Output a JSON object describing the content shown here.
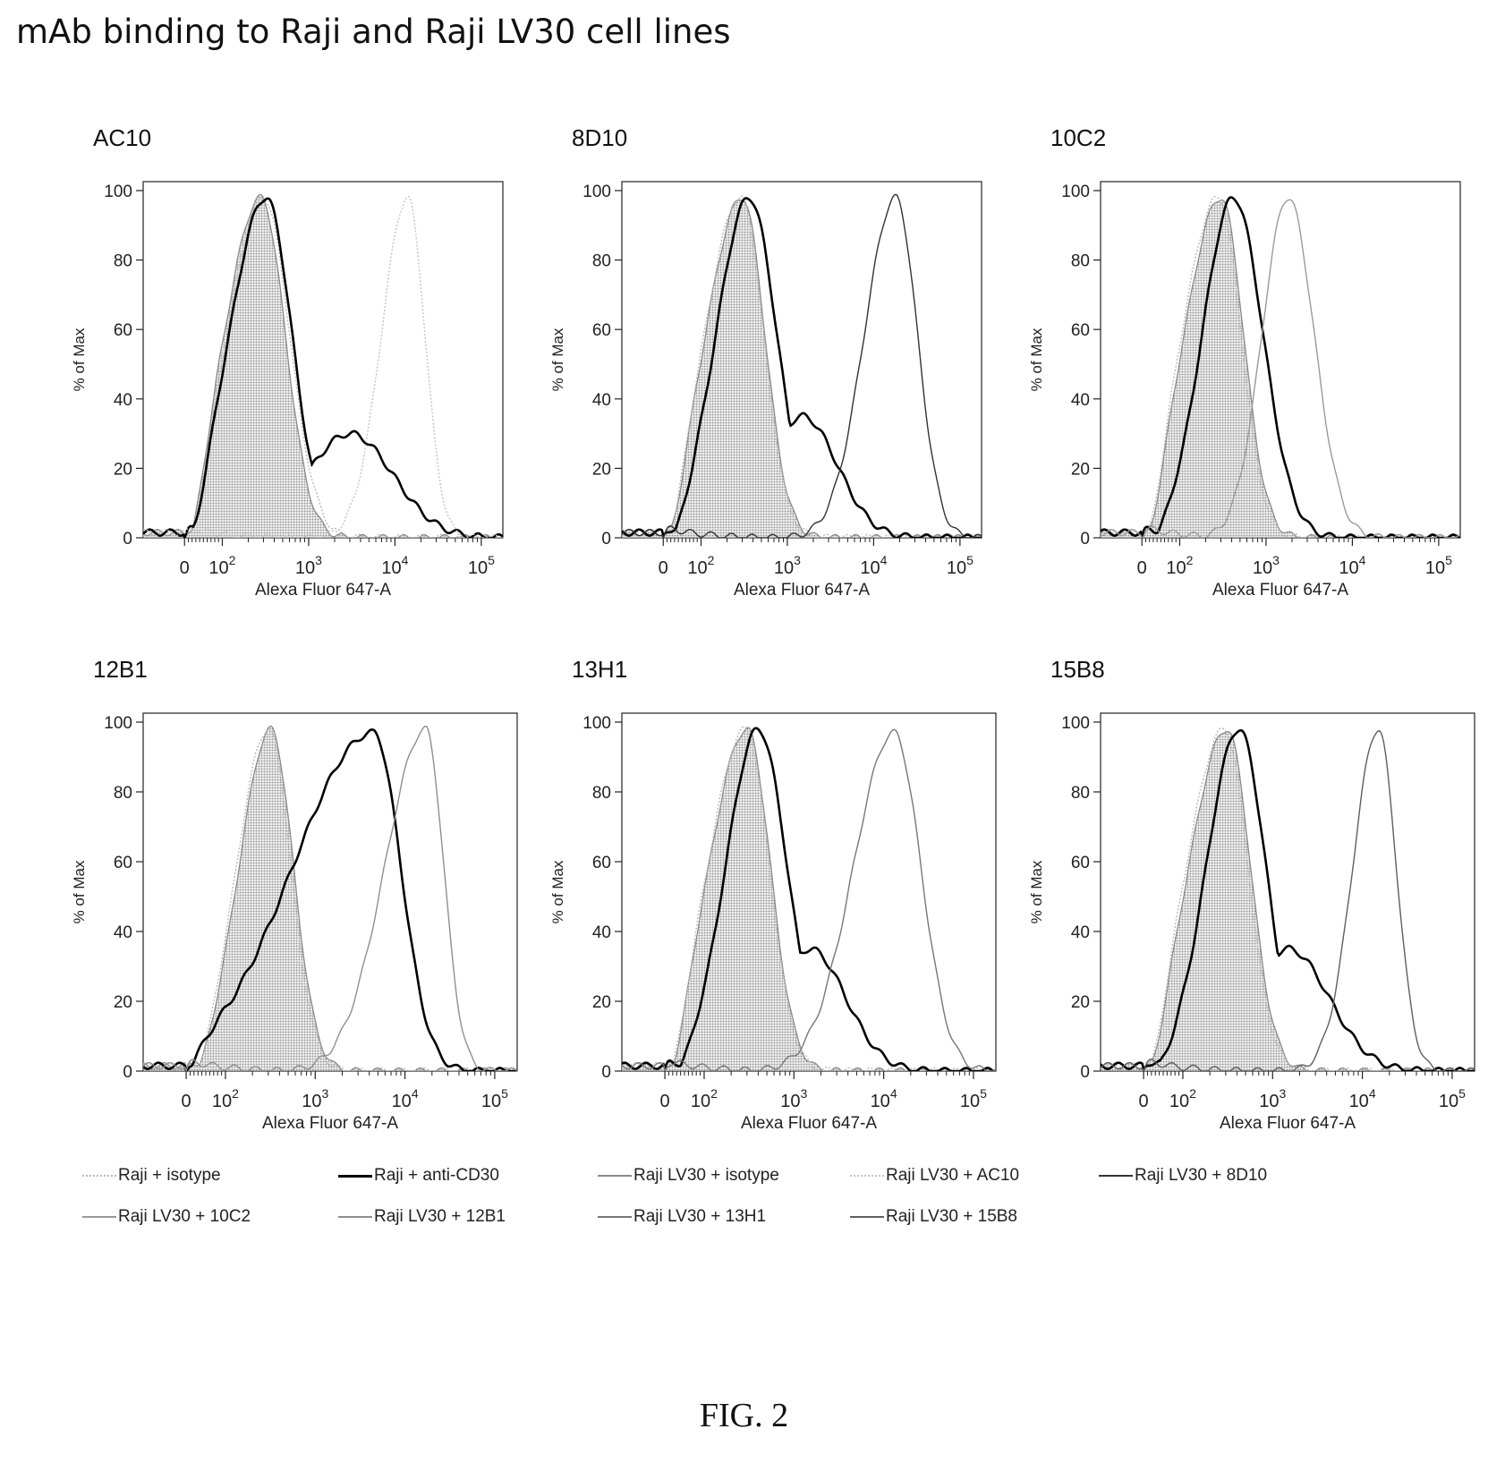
{
  "title": "mAb binding to Raji and Raji LV30 cell lines",
  "figure_caption": "FIG. 2",
  "legend": [
    {
      "key": "raji_isotype",
      "label": "Raji + isotype",
      "color": "#b8b8b8",
      "dash": "2,2"
    },
    {
      "key": "raji_cd30",
      "label": "Raji + anti-CD30",
      "color": "#000000"
    },
    {
      "key": "lv30_isotype",
      "label": "Raji LV30 + isotype",
      "color": "#8a8a8a"
    },
    {
      "key": "lv30_ac10",
      "label": "Raji LV30 + AC10",
      "color": "#c4c4c4",
      "dash": "2,2"
    },
    {
      "key": "lv30_8d10",
      "label": "Raji LV30 + 8D10",
      "color": "#333333"
    },
    {
      "key": "lv30_10c2",
      "label": "Raji LV30 + 10C2",
      "color": "#9a9a9a"
    },
    {
      "key": "lv30_12b1",
      "label": "Raji LV30 + 12B1",
      "color": "#8f8f8f"
    },
    {
      "key": "lv30_13h1",
      "label": "Raji LV30 + 13H1",
      "color": "#777777"
    },
    {
      "key": "lv30_15b8",
      "label": "Raji LV30 + 15B8",
      "color": "#5f5f5f"
    }
  ],
  "chart_data": [
    {
      "type": "area",
      "title": "AC10",
      "xlabel": "Alexa Fluor 647-A",
      "ylabel": "% of Max",
      "x_scale": "biexponential",
      "x_ticks": [
        "0",
        "10^2",
        "10^3",
        "10^4",
        "10^5"
      ],
      "ylim": [
        0,
        100
      ],
      "y_ticks": [
        0,
        20,
        40,
        60,
        80,
        100
      ],
      "grid": false,
      "series": [
        {
          "key": "raji_isotype",
          "peak_x": 300,
          "peak_y": 98,
          "width_low": 0.42,
          "width_high": 0.3
        },
        {
          "key": "lv30_isotype",
          "peak_x": 280,
          "peak_y": 98,
          "width_low": 0.42,
          "width_high": 0.28,
          "filled": true
        },
        {
          "key": "raji_cd30",
          "peak_x": 320,
          "peak_y": 98,
          "width_low": 0.42,
          "width_high": 0.3,
          "shoulder_x": 3000,
          "shoulder_y": 30,
          "shoulder_width": 0.5
        },
        {
          "key": "lv30_ac10",
          "peak_x": 14000,
          "peak_y": 98,
          "width_low": 0.3,
          "width_high": 0.2
        }
      ]
    },
    {
      "type": "area",
      "title": "8D10",
      "xlabel": "Alexa Fluor 647-A",
      "ylabel": "% of Max",
      "x_scale": "biexponential",
      "x_ticks": [
        "0",
        "10^2",
        "10^3",
        "10^4",
        "10^5"
      ],
      "ylim": [
        0,
        100
      ],
      "y_ticks": [
        0,
        20,
        40,
        60,
        80,
        100
      ],
      "grid": false,
      "series": [
        {
          "key": "raji_isotype",
          "peak_x": 290,
          "peak_y": 98,
          "width_low": 0.42,
          "width_high": 0.26
        },
        {
          "key": "lv30_isotype",
          "peak_x": 300,
          "peak_y": 98,
          "width_low": 0.42,
          "width_high": 0.26,
          "filled": true
        },
        {
          "key": "raji_cd30",
          "peak_x": 360,
          "peak_y": 98,
          "width_low": 0.38,
          "width_high": 0.32,
          "shoulder_x": 1500,
          "shoulder_y": 35,
          "shoulder_width": 0.4
        },
        {
          "key": "lv30_8d10",
          "peak_x": 18000,
          "peak_y": 98,
          "width_low": 0.36,
          "width_high": 0.25
        }
      ]
    },
    {
      "type": "area",
      "title": "10C2",
      "xlabel": "Alexa Fluor 647-A",
      "ylabel": "% of Max",
      "x_scale": "biexponential",
      "x_ticks": [
        "0",
        "10^2",
        "10^3",
        "10^4",
        "10^5"
      ],
      "ylim": [
        0,
        100
      ],
      "y_ticks": [
        0,
        20,
        40,
        60,
        80,
        100
      ],
      "grid": false,
      "series": [
        {
          "key": "raji_isotype",
          "peak_x": 280,
          "peak_y": 98,
          "width_low": 0.42,
          "width_high": 0.26
        },
        {
          "key": "lv30_isotype",
          "peak_x": 300,
          "peak_y": 98,
          "width_low": 0.42,
          "width_high": 0.26,
          "filled": true
        },
        {
          "key": "raji_cd30",
          "peak_x": 420,
          "peak_y": 98,
          "width_low": 0.36,
          "width_high": 0.34
        },
        {
          "key": "lv30_10c2",
          "peak_x": 1800,
          "peak_y": 98,
          "width_low": 0.3,
          "width_high": 0.3
        }
      ]
    },
    {
      "type": "area",
      "title": "12B1",
      "xlabel": "Alexa Fluor 647-A",
      "ylabel": "% of Max",
      "x_scale": "biexponential",
      "x_ticks": [
        "0",
        "10^2",
        "10^3",
        "10^4",
        "10^5"
      ],
      "ylim": [
        0,
        100
      ],
      "y_ticks": [
        0,
        20,
        40,
        60,
        80,
        100
      ],
      "grid": false,
      "series": [
        {
          "key": "raji_isotype",
          "peak_x": 300,
          "peak_y": 98,
          "width_low": 0.35,
          "width_high": 0.25
        },
        {
          "key": "lv30_isotype",
          "peak_x": 320,
          "peak_y": 98,
          "width_low": 0.35,
          "width_high": 0.25,
          "filled": true
        },
        {
          "key": "raji_cd30",
          "peak_x": 4500,
          "peak_y": 97,
          "width_low": 0.9,
          "width_high": 0.3
        },
        {
          "key": "lv30_12b1",
          "peak_x": 17000,
          "peak_y": 98,
          "width_low": 0.45,
          "width_high": 0.2
        }
      ]
    },
    {
      "type": "area",
      "title": "13H1",
      "xlabel": "Alexa Fluor 647-A",
      "ylabel": "% of Max",
      "x_scale": "biexponential",
      "x_ticks": [
        "0",
        "10^2",
        "10^3",
        "10^4",
        "10^5"
      ],
      "ylim": [
        0,
        100
      ],
      "y_ticks": [
        0,
        20,
        40,
        60,
        80,
        100
      ],
      "grid": false,
      "series": [
        {
          "key": "raji_isotype",
          "peak_x": 290,
          "peak_y": 98,
          "width_low": 0.42,
          "width_high": 0.26
        },
        {
          "key": "lv30_isotype",
          "peak_x": 300,
          "peak_y": 98,
          "width_low": 0.42,
          "width_high": 0.26,
          "filled": true
        },
        {
          "key": "raji_cd30",
          "peak_x": 400,
          "peak_y": 98,
          "width_low": 0.36,
          "width_high": 0.32,
          "shoulder_x": 1500,
          "shoulder_y": 35,
          "shoulder_width": 0.4
        },
        {
          "key": "lv30_13h1",
          "peak_x": 13000,
          "peak_y": 97,
          "width_low": 0.45,
          "width_high": 0.3
        }
      ]
    },
    {
      "type": "area",
      "title": "15B8",
      "xlabel": "Alexa Fluor 647-A",
      "ylabel": "% of Max",
      "x_scale": "biexponential",
      "x_ticks": [
        "0",
        "10^2",
        "10^3",
        "10^4",
        "10^5"
      ],
      "ylim": [
        0,
        100
      ],
      "y_ticks": [
        0,
        20,
        40,
        60,
        80,
        100
      ],
      "grid": false,
      "series": [
        {
          "key": "raji_isotype",
          "peak_x": 290,
          "peak_y": 98,
          "width_low": 0.42,
          "width_high": 0.26
        },
        {
          "key": "lv30_isotype",
          "peak_x": 310,
          "peak_y": 98,
          "width_low": 0.42,
          "width_high": 0.26,
          "filled": true
        },
        {
          "key": "raji_cd30",
          "peak_x": 420,
          "peak_y": 98,
          "width_low": 0.36,
          "width_high": 0.3,
          "shoulder_x": 1500,
          "shoulder_y": 35,
          "shoulder_width": 0.45
        },
        {
          "key": "lv30_15b8",
          "peak_x": 15000,
          "peak_y": 98,
          "width_low": 0.28,
          "width_high": 0.2
        }
      ]
    }
  ]
}
